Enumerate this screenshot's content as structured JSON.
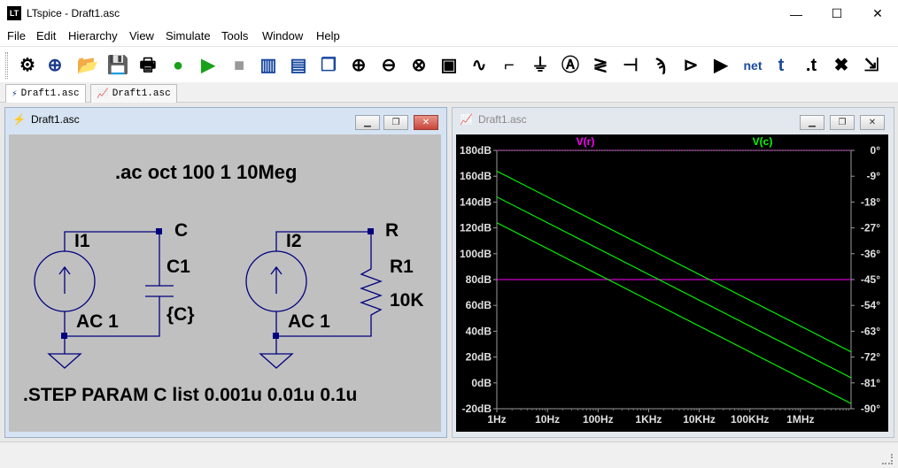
{
  "window": {
    "app_icon_text": "LT",
    "title": "LTspice - Draft1.asc",
    "minimize": "—",
    "maximize": "☐",
    "close": "✕"
  },
  "menu": [
    "File",
    "Edit",
    "Hierarchy",
    "View",
    "Simulate",
    "Tools",
    "Window",
    "Help"
  ],
  "toolbar": [
    {
      "name": "settings",
      "glyph": "⚙"
    },
    {
      "name": "new-schematic",
      "glyph": "⊕"
    },
    {
      "name": "open",
      "glyph": "📂"
    },
    {
      "name": "save",
      "glyph": "💾"
    },
    {
      "name": "print",
      "glyph": "🖶"
    },
    {
      "name": "halt",
      "glyph": "●"
    },
    {
      "name": "run",
      "glyph": "▶"
    },
    {
      "name": "stop",
      "glyph": "■"
    },
    {
      "name": "tile-vertical",
      "glyph": "▥"
    },
    {
      "name": "tile-horizontal",
      "glyph": "▤"
    },
    {
      "name": "cascade",
      "glyph": "❐"
    },
    {
      "name": "zoom-in",
      "glyph": "⊕"
    },
    {
      "name": "zoom-out",
      "glyph": "⊖"
    },
    {
      "name": "zoom-fit",
      "glyph": "⊗"
    },
    {
      "name": "zoom-full",
      "glyph": "▣"
    },
    {
      "name": "waveform",
      "glyph": "∿"
    },
    {
      "name": "wire",
      "glyph": "⌐"
    },
    {
      "name": "ground",
      "glyph": "⏚"
    },
    {
      "name": "label",
      "glyph": "Ⓐ"
    },
    {
      "name": "resistor",
      "glyph": "≷"
    },
    {
      "name": "capacitor",
      "glyph": "⊣"
    },
    {
      "name": "inductor",
      "glyph": "ϡ"
    },
    {
      "name": "diode",
      "glyph": "⊳"
    },
    {
      "name": "component",
      "glyph": "▶"
    },
    {
      "name": "netlist",
      "glyph": "net"
    },
    {
      "name": "text",
      "glyph": "t"
    },
    {
      "name": "spice-directive",
      "glyph": ".t"
    },
    {
      "name": "delete",
      "glyph": "✖"
    },
    {
      "name": "move",
      "glyph": "⇲"
    }
  ],
  "tabs": [
    {
      "label": "Draft1.asc",
      "kind": "schematic"
    },
    {
      "label": "Draft1.asc",
      "kind": "plot"
    }
  ],
  "schematic_window": {
    "title": "Draft1.asc",
    "directive_ac": ".ac oct 100 1 10Meg",
    "directive_step": ".STEP PARAM C list 0.001u 0.01u 0.1u",
    "i1": "I1",
    "i1_value": "AC 1",
    "node_c": "C",
    "c1": "C1",
    "c1_value": "{C}",
    "i2": "I2",
    "i2_value": "AC 1",
    "node_r": "R",
    "r1": "R1",
    "r1_value": "10K"
  },
  "plot_window": {
    "title": "Draft1.asc"
  },
  "chart_data": {
    "type": "line",
    "title": "",
    "legend": [
      "V(r)",
      "V(c)"
    ],
    "legend_colors": [
      "#ff00ff",
      "#00ff00"
    ],
    "xscale": "log",
    "xlim": [
      1,
      10000000
    ],
    "x_ticks": [
      1,
      10,
      100,
      1000,
      10000,
      100000,
      1000000
    ],
    "x_tick_labels": [
      "1Hz",
      "10Hz",
      "100Hz",
      "1KHz",
      "10KHz",
      "100KHz",
      "1MHz"
    ],
    "ylim": [
      -20,
      180
    ],
    "y_ticks": [
      -20,
      0,
      20,
      40,
      60,
      80,
      100,
      120,
      140,
      160,
      180
    ],
    "y_tick_labels": [
      "-20dB",
      "0dB",
      "20dB",
      "40dB",
      "60dB",
      "80dB",
      "100dB",
      "120dB",
      "140dB",
      "160dB",
      "180dB"
    ],
    "y2lim": [
      -90,
      0
    ],
    "y2_ticks": [
      -90,
      -81,
      -72,
      -63,
      -54,
      -45,
      -36,
      -27,
      -18,
      -9,
      0
    ],
    "y2_tick_labels": [
      "-90°",
      "-81°",
      "-72°",
      "-63°",
      "-54°",
      "-45°",
      "-36°",
      "-27°",
      "-18°",
      "-9°",
      "0°"
    ],
    "series": [
      {
        "name": "V(r)",
        "color": "#ff00ff",
        "x": [
          1,
          10000000
        ],
        "y": [
          80,
          80
        ]
      },
      {
        "name": "V(c) C=0.001u",
        "color": "#00ff00",
        "x": [
          1,
          10000000
        ],
        "y": [
          164,
          24
        ]
      },
      {
        "name": "V(c) C=0.01u",
        "color": "#00ff00",
        "x": [
          1,
          10000000
        ],
        "y": [
          144,
          4
        ]
      },
      {
        "name": "V(c) C=0.1u",
        "color": "#00ff00",
        "x": [
          1,
          10000000
        ],
        "y": [
          124,
          -16
        ]
      }
    ],
    "phase_series": [
      {
        "name": "phase V(r)",
        "color": "#ff00ff",
        "dashed": true,
        "x": [
          1,
          10000000
        ],
        "y": [
          0,
          0
        ]
      }
    ]
  }
}
